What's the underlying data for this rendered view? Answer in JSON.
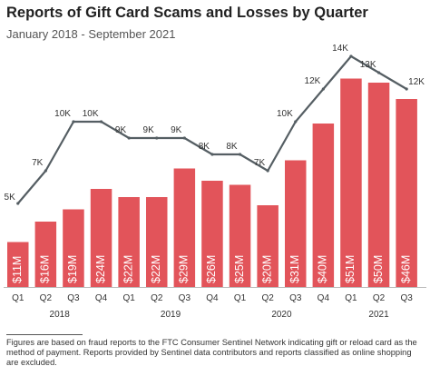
{
  "title": "Reports of Gift Card Scams and Losses by Quarter",
  "subtitle": "January 2018 - September 2021",
  "footnote": "Figures are based on fraud reports to the FTC Consumer Sentinel Network indicating gift or reload card as the method of payment. Reports provided by Sentinel data contributors and reports classified as online shopping are excluded.",
  "colors": {
    "bar": "#e2545a",
    "line": "#555e63",
    "text": "#333333"
  },
  "chart_data": {
    "type": "bar",
    "categories": [
      "Q1",
      "Q2",
      "Q3",
      "Q4",
      "Q1",
      "Q2",
      "Q3",
      "Q4",
      "Q1",
      "Q2",
      "Q3",
      "Q4",
      "Q1",
      "Q2",
      "Q3"
    ],
    "years": [
      {
        "label": "2018",
        "quarters": 4
      },
      {
        "label": "2019",
        "quarters": 4
      },
      {
        "label": "2020",
        "quarters": 4
      },
      {
        "label": "2021",
        "quarters": 3
      }
    ],
    "series": [
      {
        "kind": "bar",
        "values": [
          11,
          16,
          19,
          24,
          22,
          22,
          29,
          26,
          25,
          20,
          31,
          40,
          51,
          50,
          46
        ],
        "labels": [
          "$11M",
          "$16M",
          "$19M",
          "$24M",
          "$22M",
          "$22M",
          "$29M",
          "$26M",
          "$25M",
          "$20M",
          "$31M",
          "$40M",
          "$51M",
          "$50M",
          "$46M"
        ]
      },
      {
        "kind": "line",
        "values": [
          5,
          7,
          10,
          10,
          9,
          9,
          9,
          8,
          8,
          7,
          10,
          12,
          14,
          13,
          12
        ],
        "labels": [
          "5K",
          "7K",
          "10K",
          "10K",
          "9K",
          "9K",
          "9K",
          "8K",
          "8K",
          "7K",
          "10K",
          "12K",
          "14K",
          "13K",
          "12K"
        ]
      }
    ]
  }
}
